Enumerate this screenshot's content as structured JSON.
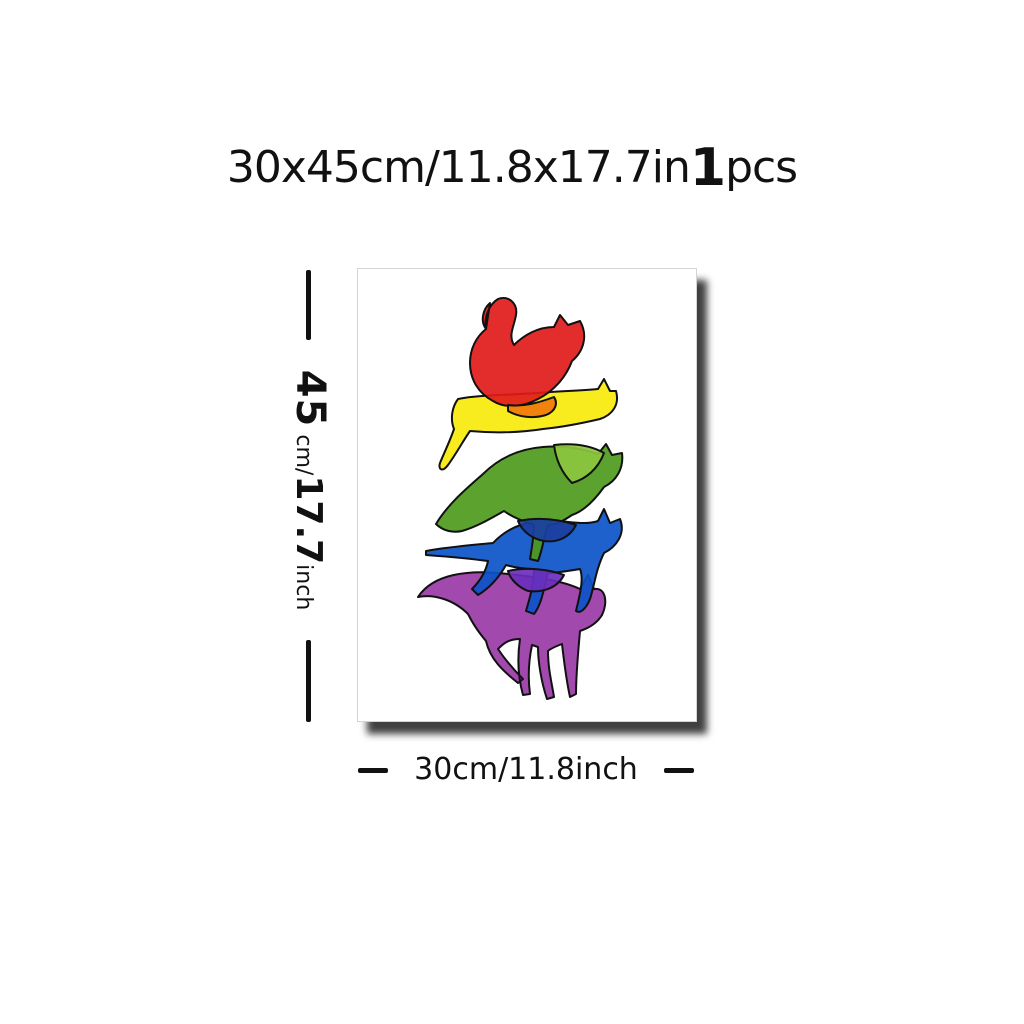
{
  "title": {
    "size": "30x45cm/11.8x17.7in",
    "quantity": "1",
    "unit": "pcs"
  },
  "height_label": {
    "value": "45",
    "unit_cm": "cm/",
    "value_in": "17.7",
    "unit_in": "inch"
  },
  "width_label": "30cm/11.8inch",
  "artwork": {
    "subject": "five stacked cats",
    "colors": [
      "#e11b1b",
      "#f7ea0c",
      "#4d9a1c",
      "#0b54c8",
      "#9a3aa6"
    ]
  }
}
